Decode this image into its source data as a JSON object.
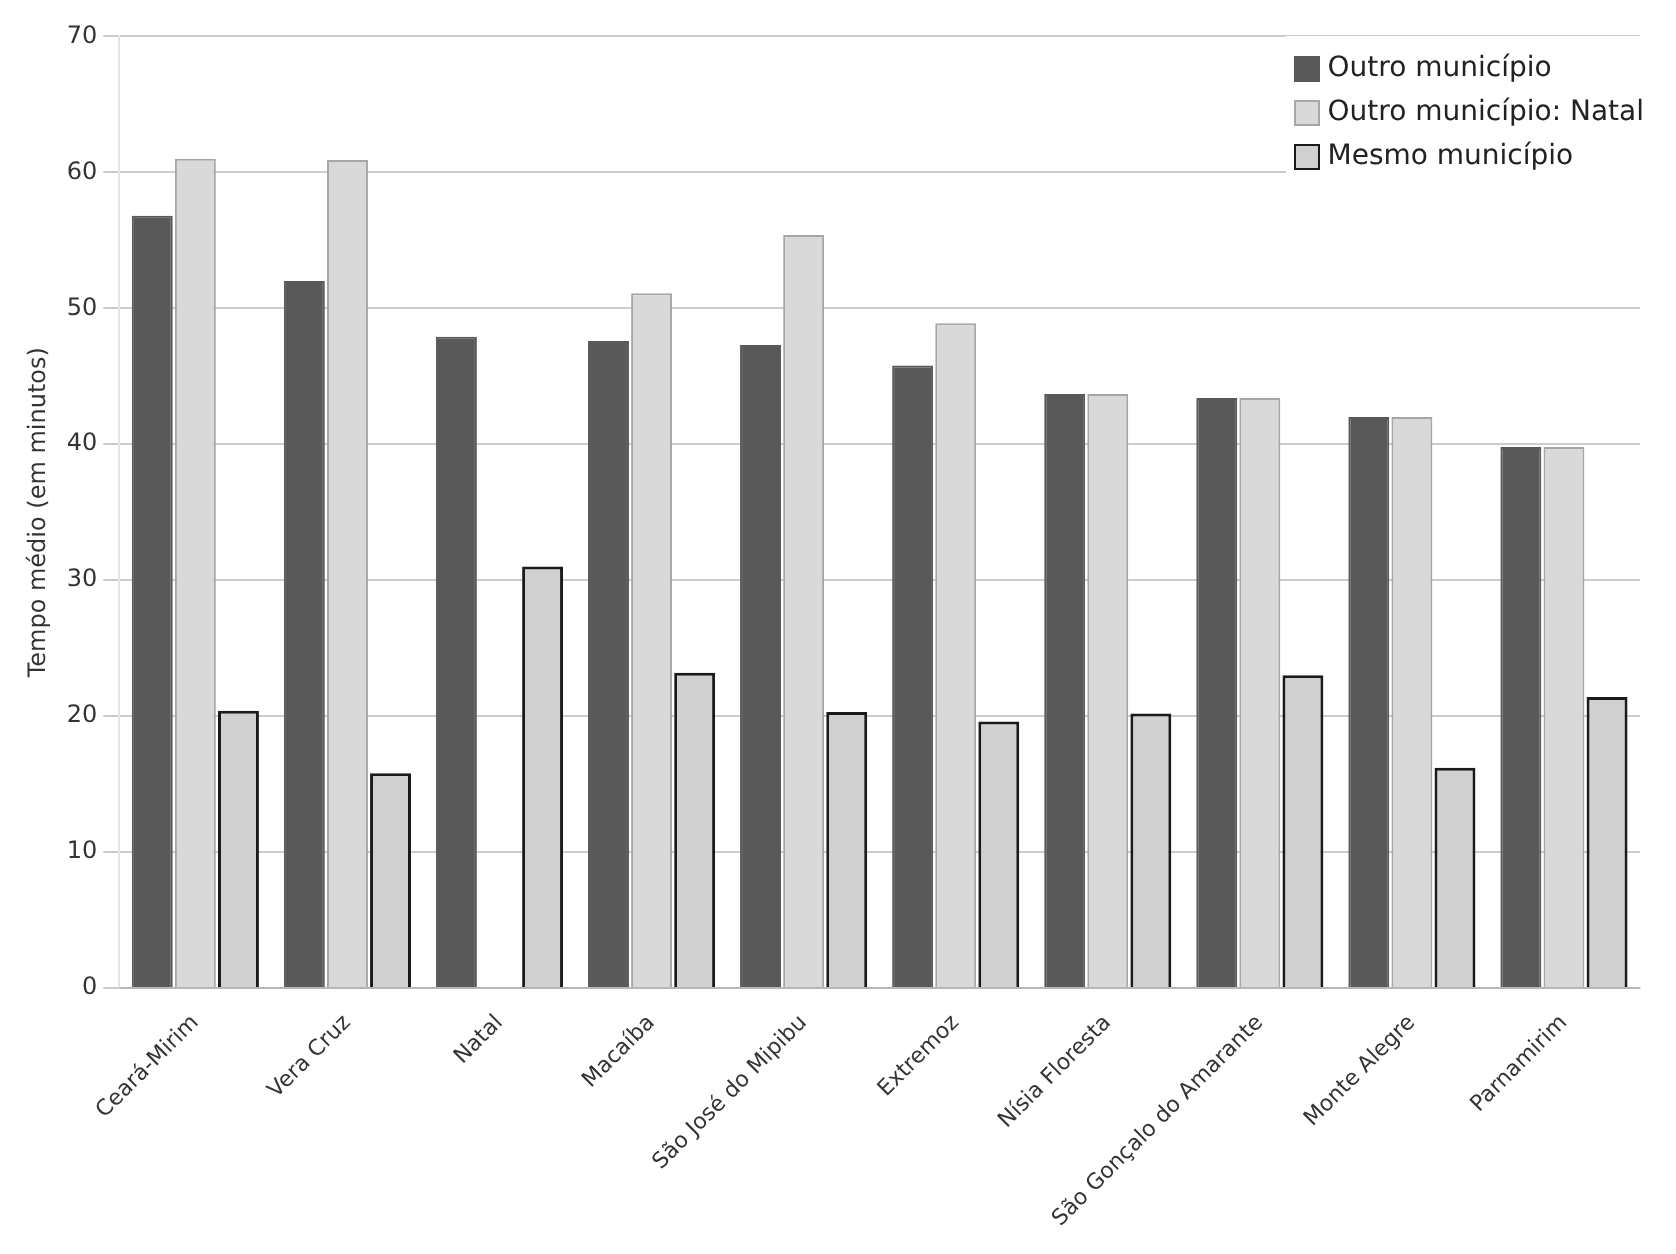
{
  "chart_data": {
    "type": "bar",
    "ylabel": "Tempo médio (em minutos)",
    "categories": [
      "Ceará-Mirim",
      "Vera Cruz",
      "Natal",
      "Macaíba",
      "São José do Mipibu",
      "Extremoz",
      "Nísia Floresta",
      "São Gonçalo do Amarante",
      "Monte Alegre",
      "Parnamirim"
    ],
    "series": [
      {
        "name": "Outro município",
        "color": "#595959",
        "values": [
          56.8,
          52,
          47.9,
          47.6,
          47.3,
          45.8,
          43.7,
          43.4,
          42,
          39.8
        ]
      },
      {
        "name": "Outro município: Natal",
        "color": "#d9d9d9",
        "values": [
          61,
          60.9,
          null,
          51.1,
          55.4,
          48.9,
          43.7,
          43.4,
          42,
          39.8
        ]
      },
      {
        "name": "Mesmo município",
        "color": "#d0d0d0",
        "values": [
          20.4,
          15.8,
          31,
          23.2,
          20.3,
          19.6,
          20.2,
          23,
          16.2,
          21.4
        ]
      }
    ],
    "ylim": [
      0,
      70
    ],
    "yticks": [
      0,
      10,
      20,
      30,
      40,
      50,
      60,
      70
    ],
    "grid": "y",
    "legend": "top right"
  }
}
